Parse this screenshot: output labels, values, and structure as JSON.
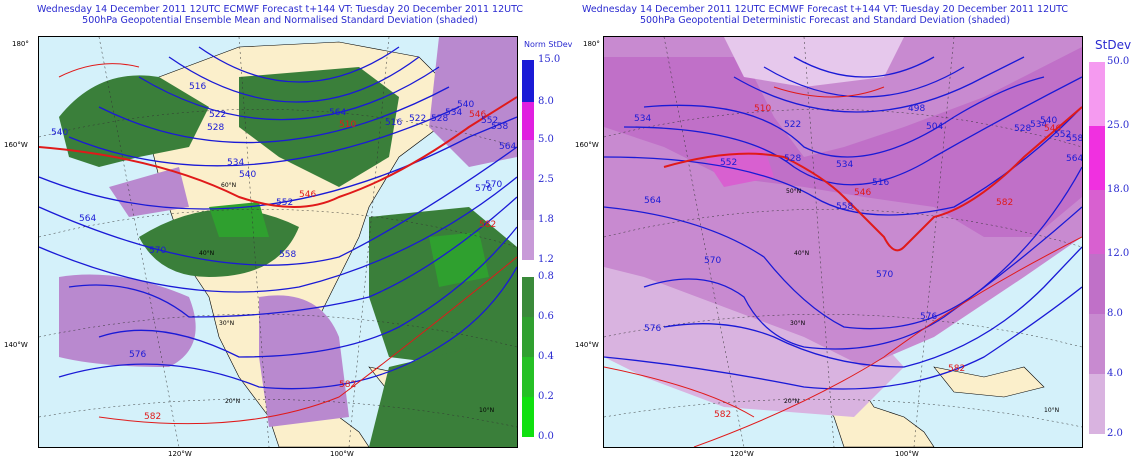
{
  "left": {
    "title_lines": [
      "Wednesday 14 December 2011 12UTC ECMWF Forecast t+144  VT: Tuesday 20 December 2011 12UTC",
      "500hPa Geopotential Ensemble Mean and Normalised Standard Deviation (shaded)"
    ],
    "colorbar_title": "Norm StDev",
    "colorbar_top_labels": [
      "15.0",
      "8.0",
      "5.0",
      "2.5",
      "1.8",
      "1.2"
    ],
    "colorbar_top_colors": [
      "#1a1ae8",
      "#e020e0",
      "#c86ad8",
      "#b885cf",
      "#c89ad8"
    ],
    "colorbar_bottom_labels": [
      "0.8",
      "0.6",
      "0.4",
      "0.2",
      "0.0"
    ],
    "colorbar_bottom_colors": [
      "#3a8a3a",
      "#2fa02f",
      "#25c025",
      "#10e010"
    ],
    "axis_labels": [
      "180°",
      "160°W",
      "140°W",
      "120°W",
      "100°W"
    ],
    "lat_labels": [
      "60°N",
      "40°N",
      "30°N",
      "20°N",
      "10°N"
    ],
    "contour_labels": [
      "516",
      "540",
      "522",
      "528",
      "534",
      "540",
      "546",
      "552",
      "564",
      "564",
      "570",
      "576",
      "582",
      "510",
      "516",
      "522",
      "528",
      "534",
      "540",
      "546",
      "552",
      "558",
      "564",
      "570",
      "576",
      "582",
      "558",
      "582"
    ]
  },
  "right": {
    "title_lines": [
      "Wednesday 14 December 2011 12UTC ECMWF Forecast t+144  VT: Tuesday 20 December 2011 12UTC",
      "500hPa Geopotential Deterministic Forecast and Standard Deviation (shaded)"
    ],
    "colorbar_title": "StDev",
    "colorbar_labels": [
      "50.0",
      "25.0",
      "18.0",
      "12.0",
      "8.0",
      "4.0",
      "2.0"
    ],
    "colorbar_colors": [
      "#f59af0",
      "#f030e0",
      "#d860d0",
      "#c070c8",
      "#c88ad0",
      "#d9b3e0"
    ],
    "axis_labels": [
      "180°",
      "160°W",
      "140°W",
      "120°W",
      "100°W"
    ],
    "lat_labels": [
      "50°N",
      "40°N",
      "30°N",
      "20°N",
      "10°N"
    ],
    "contour_labels": [
      "534",
      "510",
      "522",
      "528",
      "534",
      "546",
      "552",
      "558",
      "564",
      "570",
      "576",
      "582",
      "582",
      "516",
      "504",
      "498",
      "528",
      "534",
      "540",
      "546",
      "552",
      "558",
      "564",
      "570",
      "576",
      "582"
    ]
  },
  "colors": {
    "ocean": "#d4f1fa",
    "land": "#fbefcb",
    "green": "#3a7f3a",
    "purple": "#b989cf",
    "contour": "#1a1ad6",
    "contour_hi": "#e01a1a"
  }
}
